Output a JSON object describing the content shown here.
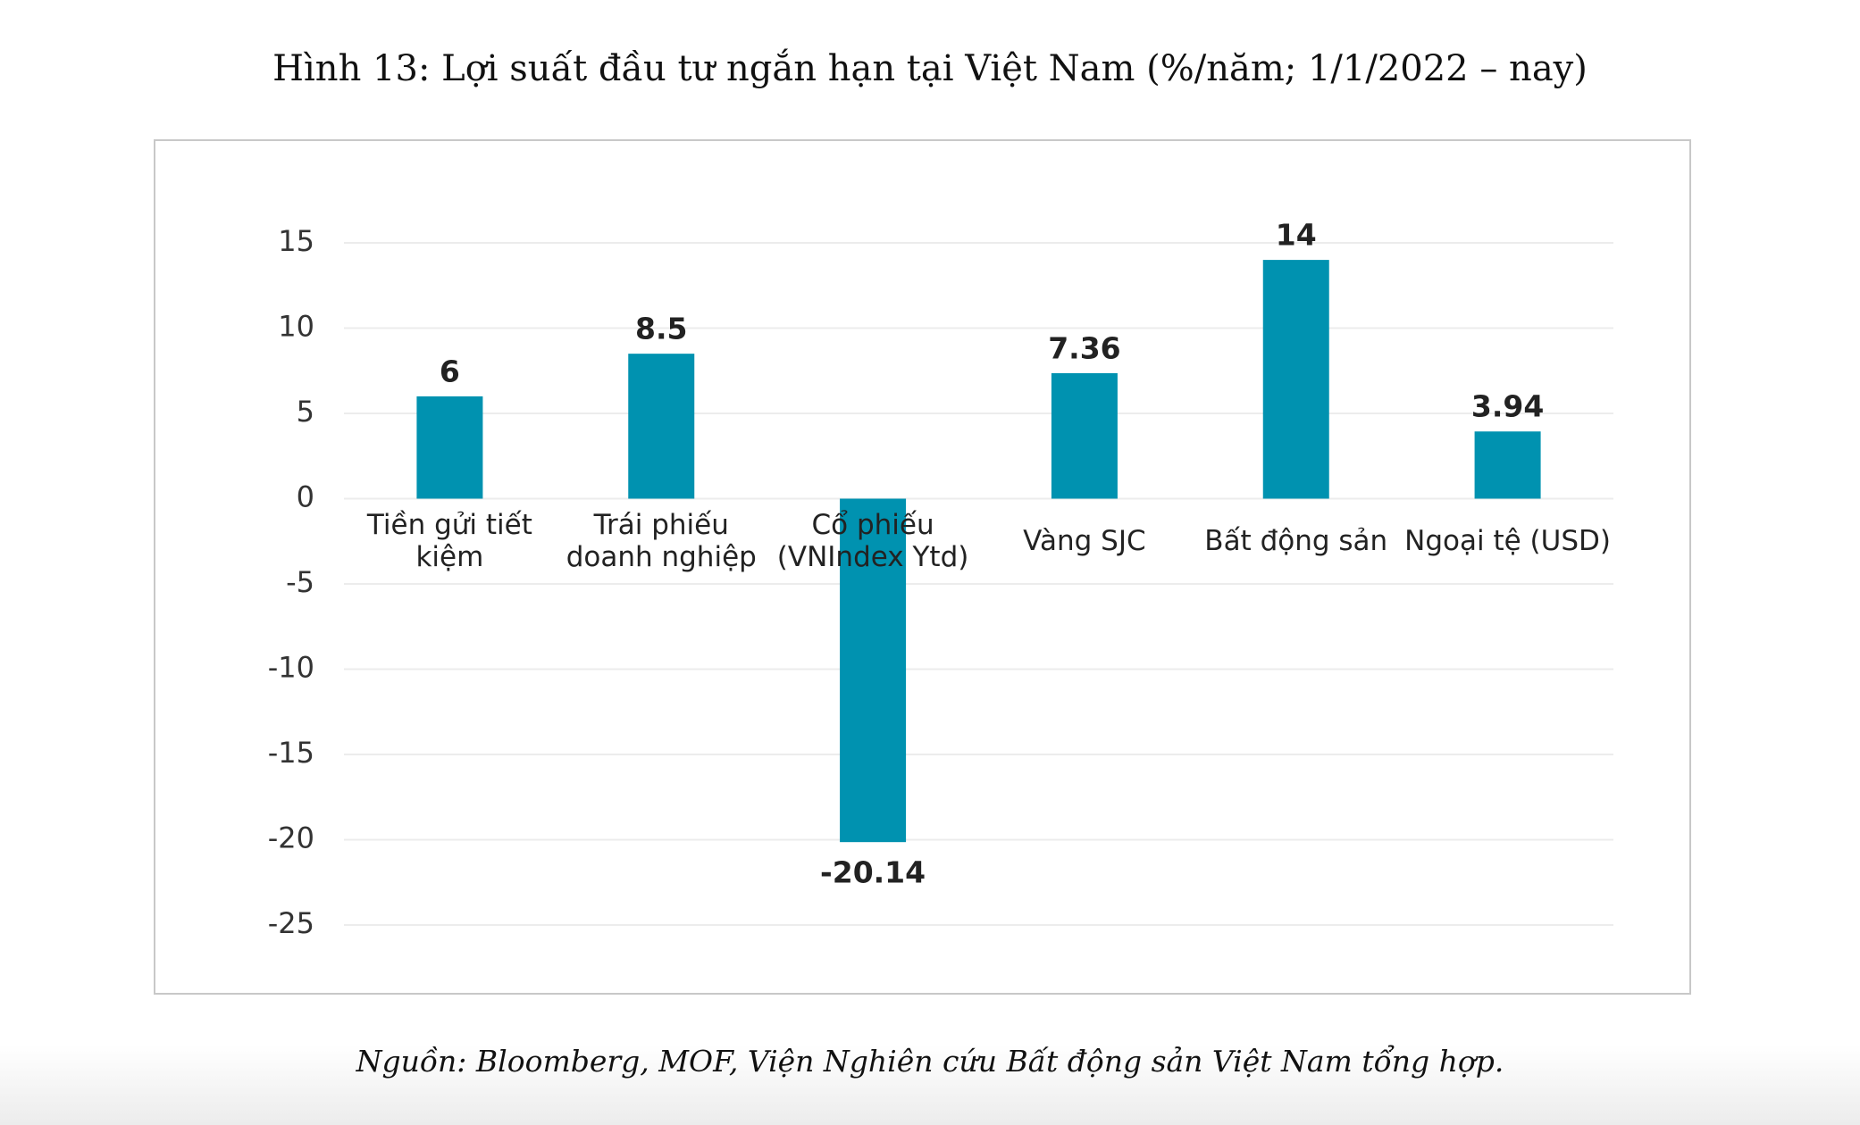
{
  "chart_data": {
    "type": "bar",
    "title": "Hình 13: Lợi suất đầu tư ngắn hạn tại Việt Nam (%/năm; 1/1/2022 – nay)",
    "categories": [
      "Tiền gửi tiết kiệm",
      "Trái phiếu doanh nghiệp",
      "Cổ phiếu (VNIndex Ytd)",
      "Vàng SJC",
      "Bất động sản",
      "Ngoại tệ (USD)"
    ],
    "values": [
      6,
      8.5,
      -20.14,
      7.36,
      14,
      3.94
    ],
    "color": "#0092b0",
    "ylim": [
      -25,
      15
    ],
    "yticks": [
      -25,
      -20,
      -15,
      -10,
      -5,
      0,
      5,
      10,
      15
    ],
    "grid": true,
    "source": "Nguồn: Bloomberg, MOF, Viện Nghiên cứu Bất động sản Việt Nam tổng hợp."
  }
}
